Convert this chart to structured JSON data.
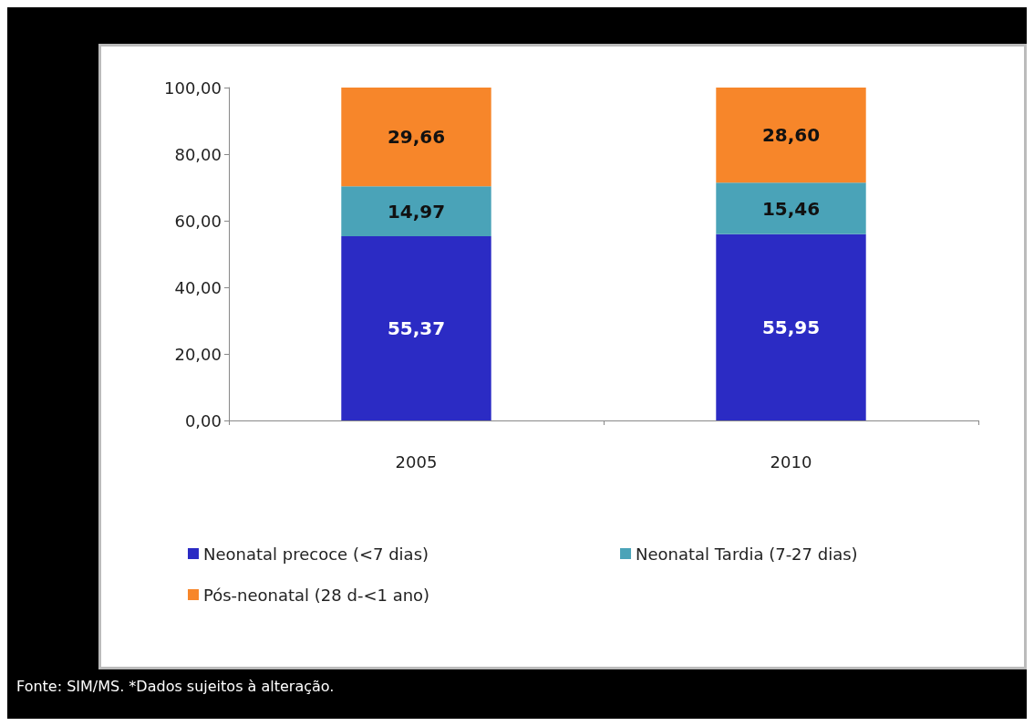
{
  "chart_data": {
    "type": "bar",
    "stacked": true,
    "categories": [
      "2005",
      "2010"
    ],
    "series": [
      {
        "name": "Neonatal precoce (<7 dias)",
        "color": "#2b2bc4",
        "values": [
          55.37,
          55.95
        ],
        "value_labels": [
          "55,37",
          "55,95"
        ]
      },
      {
        "name": "Neonatal Tardia (7-27 dias)",
        "color": "#4aa3b8",
        "values": [
          14.97,
          15.46
        ],
        "value_labels": [
          "14,97",
          "15,46"
        ]
      },
      {
        "name": "Pós-neonatal (28 d-<1 ano)",
        "color": "#f7862a",
        "values": [
          29.66,
          28.6
        ],
        "value_labels": [
          "29,66",
          "28,60"
        ]
      }
    ],
    "ylim": [
      0,
      100
    ],
    "yticks": [
      {
        "value": 0,
        "label": "0,00"
      },
      {
        "value": 20,
        "label": "20,00"
      },
      {
        "value": 40,
        "label": "40,00"
      },
      {
        "value": 60,
        "label": "60,00"
      },
      {
        "value": 80,
        "label": "80,00"
      },
      {
        "value": 100,
        "label": "100,00"
      }
    ],
    "grid": false,
    "legend": "bottom",
    "annotations": [
      "Fonte: SIM/MS. *Dados sujeitos à alteração."
    ]
  }
}
